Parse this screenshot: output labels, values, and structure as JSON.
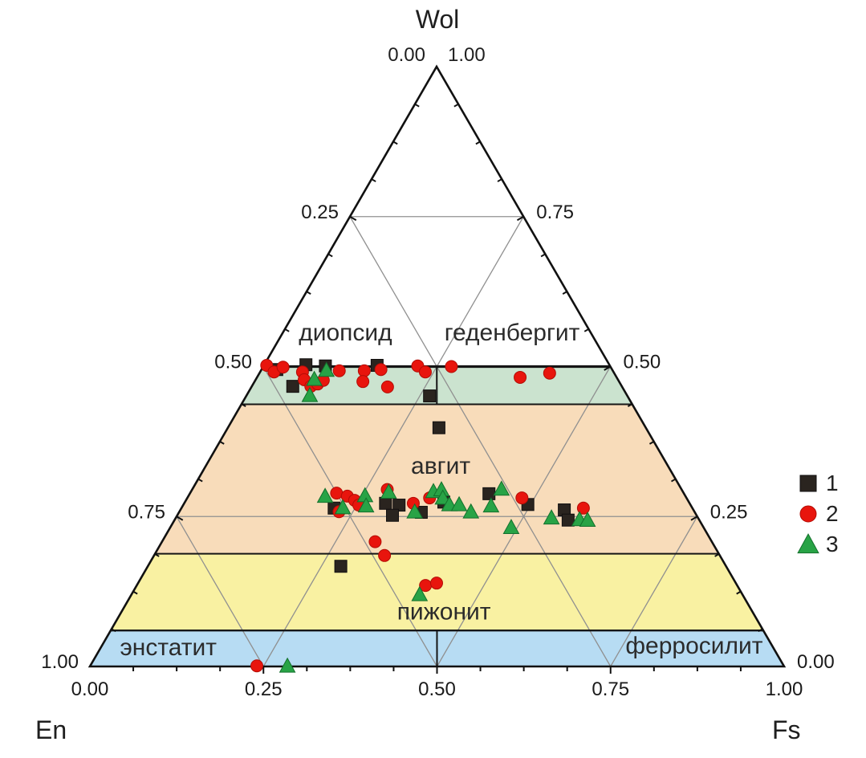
{
  "figure": {
    "corner_labels": {
      "top": "Wol",
      "bottom_left": "En",
      "bottom_right": "Fs"
    },
    "apex_ticks": {
      "left": "0.00",
      "right": "1.00"
    }
  },
  "legend": {
    "items": [
      {
        "label": "1",
        "marker": "square"
      },
      {
        "label": "2",
        "marker": "circle"
      },
      {
        "label": "3",
        "marker": "triangle"
      }
    ]
  },
  "chart_data": {
    "type": "ternary-scatter",
    "description": "Pyroxene classification ternary diagram Wol-En-Fs; points given as [fs, wo] fractions, en = 1 - fs - wo",
    "axes": {
      "top_apex": "Wol",
      "bottom_left_apex": "En",
      "bottom_right_apex": "Fs",
      "left_edge_tick_labels": [
        "0.25",
        "0.50",
        "0.75",
        "1.00"
      ],
      "left_edge_tick_values": [
        0.25,
        0.5,
        0.75,
        1.0
      ],
      "right_edge_tick_labels": [
        "0.75",
        "0.50",
        "0.25",
        "0.00"
      ],
      "right_edge_tick_values": [
        0.75,
        0.5,
        0.25,
        0.0
      ],
      "bottom_edge_tick_labels": [
        "0.00",
        "0.25",
        "0.50",
        "0.75",
        "1.00"
      ],
      "bottom_edge_tick_values": [
        0.0,
        0.25,
        0.5,
        0.75,
        1.0
      ],
      "minor_tick_step": 0.0625
    },
    "gridlines": {
      "wo": [
        0.25,
        0.75
      ],
      "en": [
        0.25,
        0.5,
        0.75
      ],
      "fs": [
        0.25,
        0.5,
        0.75
      ],
      "color": "#909090"
    },
    "fields": [
      {
        "name": "diopside-hedenbergite-band",
        "wo_from": 0.437,
        "wo_to": 0.5,
        "color": "#cbe3cf",
        "divider_at_center": true,
        "labels": [
          {
            "text": "диопсид",
            "fs": 0.09,
            "wo": 0.557
          },
          {
            "text": "геденбергит",
            "fs": 0.33,
            "wo": 0.557
          }
        ]
      },
      {
        "name": "augite",
        "wo_from": 0.188,
        "wo_to": 0.437,
        "color": "#f8dcba",
        "divider_at_center": false,
        "labels": [
          {
            "text": "авгит",
            "fs": 0.338,
            "wo": 0.335
          }
        ]
      },
      {
        "name": "pigeonite",
        "wo_from": 0.06,
        "wo_to": 0.188,
        "color": "#f9f1a2",
        "divider_at_center": false,
        "labels": [
          {
            "text": "пижонит",
            "fs": 0.464,
            "wo": 0.092
          }
        ]
      },
      {
        "name": "enstatite-ferrosilite-band",
        "wo_from": 0.0,
        "wo_to": 0.06,
        "color": "#b7dcf3",
        "divider_at_center": true,
        "labels": [
          {
            "text": "энстатит",
            "fs": 0.097,
            "wo": 0.032
          },
          {
            "text": "ферросилит",
            "fs": 0.853,
            "wo": 0.035
          }
        ]
      }
    ],
    "boundary_wo_lines": [
      {
        "wo": 0.5,
        "width": 3.2
      },
      {
        "wo": 0.437,
        "width": 2
      },
      {
        "wo": 0.188,
        "width": 2
      },
      {
        "wo": 0.06,
        "width": 2.4
      }
    ],
    "series": [
      {
        "name": "1",
        "marker": "square",
        "color": "#2a241f",
        "stroke": "#121010",
        "points": [
          [
            0.022,
            0.495
          ],
          [
            0.06,
            0.503
          ],
          [
            0.089,
            0.501
          ],
          [
            0.163,
            0.502
          ],
          [
            0.059,
            0.467
          ],
          [
            0.264,
            0.451
          ],
          [
            0.304,
            0.398
          ],
          [
            0.22,
            0.264
          ],
          [
            0.29,
            0.272
          ],
          [
            0.311,
            0.269
          ],
          [
            0.31,
            0.252
          ],
          [
            0.349,
            0.257
          ],
          [
            0.373,
            0.274
          ],
          [
            0.431,
            0.288
          ],
          [
            0.496,
            0.27
          ],
          [
            0.553,
            0.261
          ],
          [
            0.567,
            0.244
          ],
          [
            0.278,
            0.167
          ]
        ]
      },
      {
        "name": "2",
        "marker": "circle",
        "color": "#e8150d",
        "stroke": "#b30d06",
        "points": [
          [
            0.004,
            0.502
          ],
          [
            0.02,
            0.491
          ],
          [
            0.029,
            0.499
          ],
          [
            0.061,
            0.491
          ],
          [
            0.07,
            0.478
          ],
          [
            0.085,
            0.467
          ],
          [
            0.093,
            0.471
          ],
          [
            0.098,
            0.477
          ],
          [
            0.113,
            0.493
          ],
          [
            0.149,
            0.493
          ],
          [
            0.156,
            0.475
          ],
          [
            0.172,
            0.495
          ],
          [
            0.196,
            0.466
          ],
          [
            0.222,
            0.501
          ],
          [
            0.238,
            0.491
          ],
          [
            0.271,
            0.5
          ],
          [
            0.379,
            0.482
          ],
          [
            0.418,
            0.489
          ],
          [
            0.211,
            0.289
          ],
          [
            0.229,
            0.284
          ],
          [
            0.243,
            0.277
          ],
          [
            0.253,
            0.269
          ],
          [
            0.23,
            0.258
          ],
          [
            0.281,
            0.295
          ],
          [
            0.33,
            0.272
          ],
          [
            0.349,
            0.281
          ],
          [
            0.482,
            0.281
          ],
          [
            0.579,
            0.264
          ],
          [
            0.307,
            0.208
          ],
          [
            0.332,
            0.185
          ],
          [
            0.416,
            0.135
          ],
          [
            0.43,
            0.139
          ],
          [
            0.24,
            0.001
          ]
        ]
      },
      {
        "name": "3",
        "marker": "triangle",
        "color": "#28a346",
        "stroke": "#13702c",
        "points": [
          [
            0.094,
            0.494
          ],
          [
            0.084,
            0.479
          ],
          [
            0.091,
            0.452
          ],
          [
            0.197,
            0.284
          ],
          [
            0.232,
            0.265
          ],
          [
            0.254,
            0.285
          ],
          [
            0.264,
            0.268
          ],
          [
            0.285,
            0.291
          ],
          [
            0.339,
            0.258
          ],
          [
            0.349,
            0.292
          ],
          [
            0.359,
            0.295
          ],
          [
            0.368,
            0.281
          ],
          [
            0.383,
            0.27
          ],
          [
            0.397,
            0.27
          ],
          [
            0.42,
            0.258
          ],
          [
            0.444,
            0.268
          ],
          [
            0.445,
            0.296
          ],
          [
            0.491,
            0.232
          ],
          [
            0.541,
            0.248
          ],
          [
            0.583,
            0.245
          ],
          [
            0.595,
            0.244
          ],
          [
            0.415,
            0.12
          ],
          [
            0.284,
            0.001
          ]
        ]
      }
    ],
    "layout_hints": {
      "grid": true,
      "legend_position": "right-middle",
      "fields_above_wo_0.5": "white"
    }
  }
}
